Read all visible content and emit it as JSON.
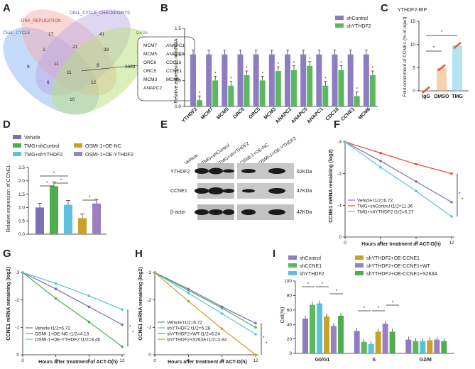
{
  "panel_labels": [
    "A",
    "B",
    "C",
    "D",
    "E",
    "F",
    "G",
    "H",
    "I"
  ],
  "colors": {
    "shControl": "#8e7cc3",
    "shYTHDF2": "#5cb85c",
    "vehicle": "#7b6fb8",
    "tmg_shcontrol": "#4cae4c",
    "tmg_shythdf2": "#5bc0de",
    "osmi_nc": "#c9a227",
    "osmi_oe": "#9b7fc0"
  },
  "venn": {
    "sets": [
      "DNA_REPLICATION",
      "CELL_CYCLE_CHECKPOINTS",
      "CELL_CYCLE",
      "DEGs"
    ],
    "numbers": [
      "17",
      "41",
      "2",
      "21",
      "28",
      "9",
      "11",
      "3363",
      "11",
      "8",
      "6",
      "12",
      "10"
    ],
    "genes": [
      "MCM7",
      "ANAPC1",
      "MCM5",
      "ANAPC5",
      "ORC6",
      "CDC16",
      "ORC5",
      "CCNE1",
      "MCM3",
      "MCM6",
      "ANAPC2"
    ]
  },
  "chart_data": [
    {
      "panel": "B",
      "type": "bar",
      "ylabel": "Relative expression of mRNA",
      "ylim": [
        0,
        1.5
      ],
      "yticks": [
        "0.0",
        "0.5",
        "1.0",
        "1.5"
      ],
      "categories": [
        "YTHDF2",
        "MCM7",
        "MCM5",
        "ORC6",
        "ORC5",
        "MCM3",
        "ANAPC2",
        "ANAPC5",
        "ANAPC1",
        "CDC16",
        "CCNE1",
        "MCM6"
      ],
      "series": [
        {
          "name": "shControl",
          "values": [
            1,
            1,
            1,
            1,
            1,
            1,
            1,
            1,
            1,
            1,
            1,
            1
          ]
        },
        {
          "name": "shYTHDF2",
          "values": [
            0.12,
            0.5,
            0.4,
            0.6,
            0.5,
            0.68,
            0.7,
            0.78,
            0.4,
            0.7,
            0.2,
            0.6
          ]
        }
      ],
      "annotations": [
        "*"
      ]
    },
    {
      "panel": "C",
      "type": "bar",
      "title": "YTHDF2-RIP",
      "ylabel": "Fold enrichment of CCNE1 (% of Input)",
      "ylim": [
        0,
        15
      ],
      "yticks": [
        "0",
        "5",
        "10",
        "15"
      ],
      "categories": [
        "IgG",
        "DMSO",
        "TMG"
      ],
      "values": [
        0.2,
        5.0,
        9.8
      ],
      "annotations": [
        "*",
        "*"
      ]
    },
    {
      "panel": "D",
      "type": "bar",
      "ylabel": "Relative expression of CCNE1",
      "ylim": [
        0,
        2.5
      ],
      "yticks": [
        "0.0",
        "0.5",
        "1.0",
        "1.5",
        "2.0",
        "2.5"
      ],
      "legend": [
        "Vehicle",
        "TMG+shControl",
        "TMG+shYTHDF2",
        "OSMI-1+OE-NC",
        "OSMI-1+OE-YTHDF2"
      ],
      "values": [
        1.0,
        1.8,
        1.1,
        0.6,
        1.15
      ],
      "annotations": [
        "*",
        "*",
        "*",
        "*"
      ]
    },
    {
      "panel": "F",
      "type": "line",
      "xlabel": "Hours after treatment of ACT-D(h)",
      "ylabel": "CCNE1 mRNA remaining (log2)",
      "x": [
        0,
        4,
        8,
        12
      ],
      "ylim": [
        -3,
        0
      ],
      "xticks": [
        "0",
        "4",
        "8",
        "12"
      ],
      "yticks": [
        "0",
        "-1",
        "-2",
        "-3"
      ],
      "series": [
        {
          "name": "Vehicle",
          "half_life": "t1/2=6.72",
          "values": [
            0,
            -0.6,
            -1.25,
            -1.9
          ]
        },
        {
          "name": "TMG+shControl",
          "half_life": "t1/2=11.36",
          "values": [
            0,
            -0.35,
            -0.7,
            -1.0
          ]
        },
        {
          "name": "TMG+shYTHDF2",
          "half_life": "t1/2=5.27",
          "values": [
            0,
            -0.8,
            -1.55,
            -2.35
          ]
        }
      ],
      "annotations": [
        "*",
        "*"
      ]
    },
    {
      "panel": "G",
      "type": "line",
      "xlabel": "Hours after treatment of ACT-D(h)",
      "ylabel": "CCNE1 mRNA remaining (log2)",
      "x": [
        0,
        4,
        8,
        12
      ],
      "ylim": [
        -3,
        0
      ],
      "xticks": [
        "0",
        "4",
        "8",
        "12"
      ],
      "yticks": [
        "0",
        "-1",
        "-2",
        "-3"
      ],
      "series": [
        {
          "name": "Vehicle",
          "half_life": "t1/2=6.72",
          "values": [
            0,
            -0.6,
            -1.25,
            -1.9
          ]
        },
        {
          "name": "OSMI-1+OE-NC",
          "half_life": "t1/2=4.13",
          "values": [
            0,
            -0.95,
            -1.8,
            -2.7
          ]
        },
        {
          "name": "OSMI-1+OE-YTHDF2",
          "half_life": "t1/2=8.46",
          "values": [
            0,
            -0.4,
            -0.85,
            -1.35
          ]
        }
      ],
      "annotations": [
        "*",
        "*"
      ]
    },
    {
      "panel": "H",
      "type": "line",
      "xlabel": "Hours after treatment of ACT-D(h)",
      "ylabel": "CCNE1 mRNA remaining (log2)",
      "x": [
        0,
        4,
        8,
        12
      ],
      "ylim": [
        -3,
        0
      ],
      "xticks": [
        "0",
        "4",
        "8",
        "12"
      ],
      "yticks": [
        "0",
        "-1",
        "-2",
        "-3"
      ],
      "series": [
        {
          "name": "Vehicle",
          "half_life": "t1/2=6.72",
          "values": [
            0,
            -0.6,
            -1.25,
            -1.85
          ]
        },
        {
          "name": "shYTHDF2",
          "half_life": "t1/2=5.28",
          "values": [
            0,
            -0.75,
            -1.5,
            -2.25
          ]
        },
        {
          "name": "shYTHDF2+WT",
          "half_life": "t1/2=6.24",
          "values": [
            0,
            -0.65,
            -1.3,
            -2.0
          ]
        },
        {
          "name": "shYTHDF2+S263A",
          "half_life": "t1/2=3.84",
          "values": [
            0,
            -1.05,
            -2.05,
            -3.0
          ]
        }
      ],
      "annotations": [
        "*",
        "*"
      ]
    },
    {
      "panel": "I",
      "type": "bar",
      "ylabel": "Cell(%)",
      "ylim": [
        0,
        100
      ],
      "yticks": [
        "0",
        "20",
        "40",
        "60",
        "80",
        "100"
      ],
      "categories": [
        "G0/G1",
        "S",
        "G2/M"
      ],
      "series": [
        {
          "name": "shControl",
          "values": [
            48,
            31,
            19
          ]
        },
        {
          "name": "shCCNE1",
          "values": [
            67,
            16,
            17
          ]
        },
        {
          "name": "shYTHDF2",
          "values": [
            69,
            13,
            17
          ]
        },
        {
          "name": "shYTHDF2+OE-CCNE1",
          "values": [
            51,
            30,
            18
          ]
        },
        {
          "name": "shYTHDF2+OE-CCNE1+WT",
          "values": [
            38,
            41,
            19
          ]
        },
        {
          "name": "shYTHDF2+OE-CCNE1+S263A",
          "values": [
            52,
            30,
            17
          ]
        }
      ],
      "annotations": [
        "*"
      ]
    }
  ],
  "western": {
    "columns": [
      "Vehicle",
      "TMG+shControl",
      "TMG+shYTHDF2",
      "OSMI-1+OE-NC",
      "OSMI-1+OE-YTHDF2"
    ],
    "rows": [
      {
        "label": "YTHDF2",
        "kda": "62KDa"
      },
      {
        "label": "CCNE1",
        "kda": "47KDa"
      },
      {
        "label": "β-actin",
        "kda": "42KDa"
      }
    ]
  }
}
